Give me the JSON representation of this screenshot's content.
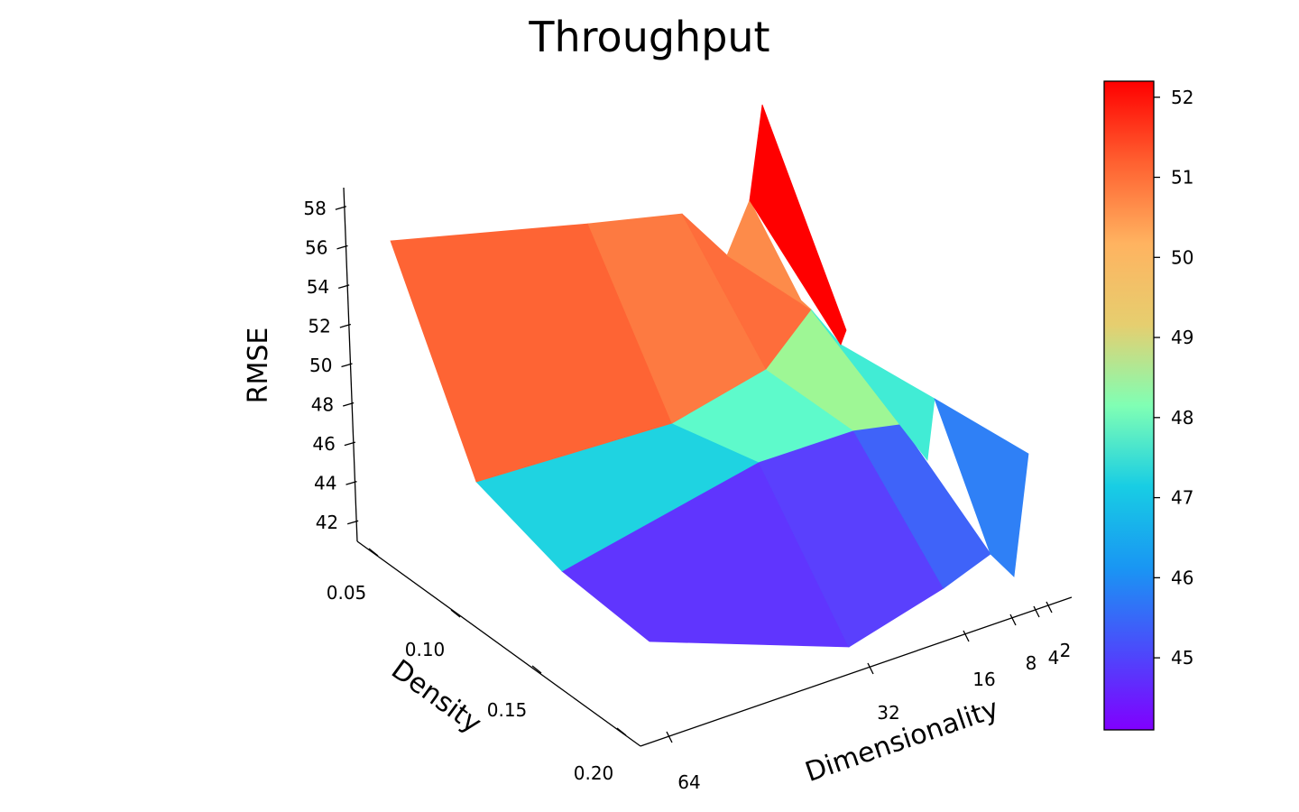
{
  "chart_data": {
    "type": "surface3d",
    "title": "Throughput",
    "xlabel": "Dimensionality",
    "ylabel": "Density",
    "zlabel": "RMSE",
    "x_ticks": [
      "64",
      "32",
      "16",
      "8",
      "4",
      "2"
    ],
    "y_ticks": [
      "0.05",
      "0.10",
      "0.15",
      "0.20"
    ],
    "z_ticks": [
      "42",
      "44",
      "46",
      "48",
      "50",
      "52",
      "54",
      "56",
      "58"
    ],
    "zlim": [
      41,
      59
    ],
    "colormap": "rainbow",
    "colorbar": {
      "range": [
        44.1,
        52.2
      ],
      "ticks": [
        "45",
        "46",
        "47",
        "48",
        "49",
        "50",
        "51",
        "52"
      ]
    },
    "grid": false,
    "quads": [
      {
        "x": "64-32",
        "y": "0.05-0.10",
        "value": 51.3,
        "color": "#fe6434"
      },
      {
        "x": "32-16",
        "y": "0.05-0.10",
        "value": 50.9,
        "color": "#fd7a41"
      },
      {
        "x": "16-8",
        "y": "0.05-0.10",
        "value": 51.2,
        "color": "#fe6d3b"
      },
      {
        "x": "8-4",
        "y": "0.05-0.10",
        "value": 50.6,
        "color": "#fd8b4a"
      },
      {
        "x": "4-2",
        "y": "0.05-0.10",
        "value": 52.2,
        "color": "#ff0000"
      },
      {
        "x": "64-32",
        "y": "0.10-0.15",
        "value": 46.3,
        "color": "#1fd3e1"
      },
      {
        "x": "32-16",
        "y": "0.10-0.15",
        "value": 47.7,
        "color": "#5efacb"
      },
      {
        "x": "16-8",
        "y": "0.10-0.15",
        "value": 48.6,
        "color": "#9ef795"
      },
      {
        "x": "8-4",
        "y": "0.10-0.15",
        "value": 47.2,
        "color": "#41ecd5"
      },
      {
        "x": "4-2",
        "y": "0.10-0.15",
        "value": 45.6,
        "color": "#2f80f6"
      },
      {
        "x": "64-32",
        "y": "0.15-0.20",
        "value": 44.5,
        "color": "#6035fe"
      },
      {
        "x": "32-16",
        "y": "0.15-0.20",
        "value": 44.7,
        "color": "#5a40fd"
      },
      {
        "x": "16-8",
        "y": "0.15-0.20",
        "value": 45.3,
        "color": "#3f63f9"
      }
    ]
  }
}
